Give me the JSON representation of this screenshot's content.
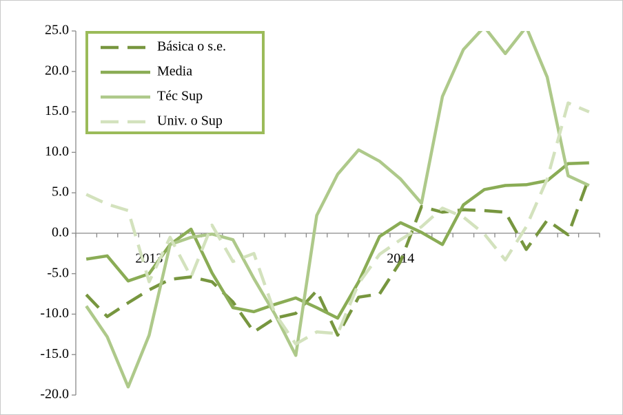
{
  "chart_data": {
    "type": "line",
    "categories": [
      null,
      null,
      null,
      "2013",
      null,
      null,
      null,
      null,
      null,
      null,
      null,
      null,
      null,
      null,
      null,
      "2014",
      null,
      null,
      null,
      null,
      null,
      null,
      null,
      null,
      null
    ],
    "series": [
      {
        "name": "Básica o s.e.",
        "color": "#77963f",
        "dash": true,
        "values": [
          -7.6,
          -10.3,
          -8.6,
          -7.0,
          -5.7,
          -5.4,
          -6.0,
          -8.5,
          -12.2,
          -10.5,
          -9.9,
          -7.1,
          -12.6,
          -7.9,
          -7.5,
          -3.5,
          3.3,
          2.6,
          2.9,
          2.8,
          2.6,
          -2.0,
          1.6,
          -0.2,
          6.9
        ]
      },
      {
        "name": "Media",
        "color": "#8aac55",
        "dash": false,
        "values": [
          -3.2,
          -2.8,
          -5.9,
          -5.0,
          -1.4,
          0.5,
          -4.9,
          -9.2,
          -9.7,
          -8.8,
          -8.0,
          -9.2,
          -10.5,
          -6.0,
          -0.4,
          1.3,
          0.1,
          -1.4,
          3.5,
          5.4,
          5.9,
          6.0,
          6.5,
          8.6,
          8.7
        ]
      },
      {
        "name": "Téc Sup",
        "color": "#aec98a",
        "dash": false,
        "values": [
          -9.0,
          -12.8,
          -19.0,
          -12.6,
          -1.4,
          -0.5,
          -0.1,
          -0.8,
          -5.6,
          -10.0,
          -15.1,
          2.2,
          7.3,
          10.3,
          8.9,
          6.7,
          3.7,
          16.9,
          22.7,
          25.5,
          22.2,
          25.5,
          19.3,
          7.1,
          5.9
        ]
      },
      {
        "name": "Univ. o Sup",
        "color": "#d3e2bd",
        "dash": true,
        "values": [
          4.8,
          3.6,
          2.8,
          -6.0,
          -0.5,
          -5.4,
          1.0,
          -3.5,
          -2.5,
          -9.9,
          -13.7,
          -12.2,
          -12.4,
          -6.2,
          -2.6,
          -0.8,
          0.8,
          3.1,
          2.0,
          -0.1,
          -3.3,
          0.8,
          6.7,
          16.1,
          15.0
        ]
      }
    ],
    "ylim": [
      -20,
      25
    ],
    "yticks": [
      {
        "value": 25,
        "label": "25.0"
      },
      {
        "value": 20,
        "label": "20.0"
      },
      {
        "value": 15,
        "label": "15.0"
      },
      {
        "value": 10,
        "label": "10.0"
      },
      {
        "value": 5,
        "label": "5.0"
      },
      {
        "value": 0,
        "label": "0.0"
      },
      {
        "value": -5,
        "label": "-5.0"
      },
      {
        "value": -10,
        "label": "-10.0"
      },
      {
        "value": -15,
        "label": "-15.0"
      },
      {
        "value": -20,
        "label": "-20.0"
      }
    ],
    "legend": "upper left",
    "grid": false
  }
}
